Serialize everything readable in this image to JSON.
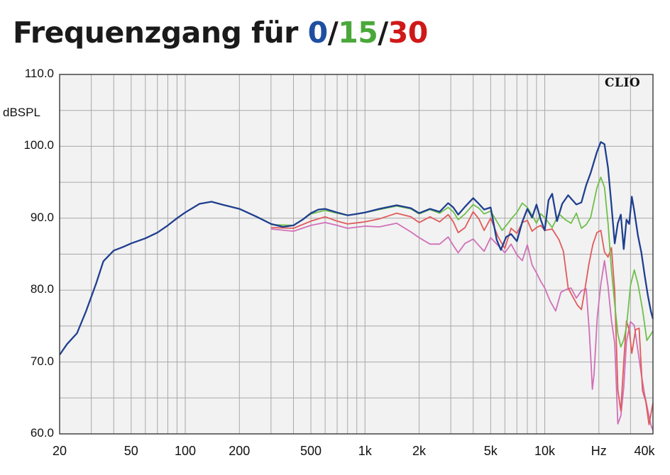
{
  "title": {
    "prefix": "Frequenzgang für",
    "part0": "0",
    "sep1": "/",
    "part15": "15",
    "sep2": "/",
    "part30": "30"
  },
  "colors": {
    "title_0": "#1f4fa0",
    "title_15": "#4aa83a",
    "title_30": "#d01818",
    "curve_0": "#1f3f8f",
    "curve_15": "#6fbf4a",
    "curve_30": "#e05a5a",
    "curve_45": "#d070b8",
    "grid": "#a8a8a8",
    "plot_bg": "#f2f2f2"
  },
  "watermark": "CLIO",
  "chart_data": {
    "type": "line",
    "x_scale": "log",
    "xlim": [
      20,
      40000
    ],
    "ylim": [
      60,
      110
    ],
    "yunit": "dBSPL",
    "y_ticks": [
      "110.0",
      "100.0",
      "90.0",
      "80.0",
      "70.0",
      "60.0"
    ],
    "x_ticks": [
      "20",
      "50",
      "100",
      "200",
      "500",
      "1k",
      "2k",
      "5k",
      "10k",
      "Hz",
      "40k"
    ],
    "grid": true,
    "series": [
      {
        "color": "#1f3f8f",
        "points": [
          [
            20,
            71
          ],
          [
            22,
            72.5
          ],
          [
            25,
            74
          ],
          [
            28,
            77
          ],
          [
            32,
            81
          ],
          [
            35,
            84
          ],
          [
            40,
            85.5
          ],
          [
            45,
            86
          ],
          [
            50,
            86.5
          ],
          [
            60,
            87.2
          ],
          [
            70,
            88
          ],
          [
            80,
            89
          ],
          [
            90,
            90
          ],
          [
            100,
            90.8
          ],
          [
            120,
            92
          ],
          [
            140,
            92.3
          ],
          [
            160,
            91.9
          ],
          [
            200,
            91.3
          ],
          [
            250,
            90.2
          ],
          [
            300,
            89.2
          ],
          [
            350,
            88.8
          ],
          [
            400,
            89
          ],
          [
            450,
            89.8
          ],
          [
            500,
            90.7
          ],
          [
            550,
            91.2
          ],
          [
            600,
            91.3
          ],
          [
            700,
            90.8
          ],
          [
            800,
            90.4
          ],
          [
            900,
            90.6
          ],
          [
            1000,
            90.8
          ],
          [
            1200,
            91.3
          ],
          [
            1500,
            91.8
          ],
          [
            1800,
            91.4
          ],
          [
            2000,
            90.7
          ],
          [
            2300,
            91.3
          ],
          [
            2600,
            90.9
          ],
          [
            2900,
            92.1
          ],
          [
            3100,
            91.5
          ],
          [
            3300,
            90.5
          ],
          [
            3600,
            91.6
          ],
          [
            4000,
            92.8
          ],
          [
            4300,
            92
          ],
          [
            4600,
            91.2
          ],
          [
            5000,
            91.5
          ],
          [
            5400,
            87
          ],
          [
            5700,
            85.6
          ],
          [
            6100,
            87.4
          ],
          [
            6500,
            87.8
          ],
          [
            7000,
            86.8
          ],
          [
            7500,
            89.5
          ],
          [
            8000,
            91.3
          ],
          [
            8500,
            90.1
          ],
          [
            9000,
            91.9
          ],
          [
            9500,
            89.8
          ],
          [
            10000,
            88.3
          ],
          [
            10500,
            92.5
          ],
          [
            11000,
            93.4
          ],
          [
            11700,
            89.6
          ],
          [
            12500,
            92
          ],
          [
            13500,
            93.2
          ],
          [
            15000,
            91.9
          ],
          [
            16000,
            92.2
          ],
          [
            17000,
            94.6
          ],
          [
            18000,
            96.3
          ],
          [
            19500,
            99.2
          ],
          [
            20500,
            100.6
          ],
          [
            21500,
            100.3
          ],
          [
            22500,
            97
          ],
          [
            23500,
            91.8
          ],
          [
            24500,
            86.5
          ],
          [
            25500,
            89.3
          ],
          [
            26500,
            90.5
          ],
          [
            27500,
            85.7
          ],
          [
            28500,
            89.8
          ],
          [
            29500,
            89.2
          ],
          [
            30500,
            93
          ],
          [
            31500,
            91
          ],
          [
            33000,
            87.6
          ],
          [
            34500,
            85.2
          ],
          [
            36000,
            82
          ],
          [
            37500,
            79.2
          ],
          [
            39000,
            77
          ],
          [
            40000,
            76
          ]
        ]
      },
      {
        "color": "#6fbf4a",
        "points": [
          [
            300,
            89.1
          ],
          [
            400,
            89
          ],
          [
            500,
            90.6
          ],
          [
            600,
            91.1
          ],
          [
            700,
            90.7
          ],
          [
            800,
            90.4
          ],
          [
            1000,
            90.8
          ],
          [
            1200,
            91.2
          ],
          [
            1500,
            91.7
          ],
          [
            1800,
            91.3
          ],
          [
            2000,
            90.6
          ],
          [
            2300,
            91.2
          ],
          [
            2600,
            90.7
          ],
          [
            2900,
            91.5
          ],
          [
            3100,
            90.9
          ],
          [
            3300,
            89.8
          ],
          [
            3600,
            90.6
          ],
          [
            4000,
            91.9
          ],
          [
            4300,
            91.4
          ],
          [
            4600,
            90.6
          ],
          [
            5000,
            91
          ],
          [
            5400,
            89.6
          ],
          [
            5800,
            88.3
          ],
          [
            6200,
            89.2
          ],
          [
            6600,
            90.1
          ],
          [
            7000,
            90.8
          ],
          [
            7500,
            92.1
          ],
          [
            8000,
            91.5
          ],
          [
            8500,
            90.4
          ],
          [
            9000,
            89.3
          ],
          [
            9500,
            90.6
          ],
          [
            10000,
            90.1
          ],
          [
            11000,
            88.7
          ],
          [
            12000,
            90.6
          ],
          [
            13000,
            89.8
          ],
          [
            14000,
            89.3
          ],
          [
            15000,
            90.7
          ],
          [
            16000,
            88.6
          ],
          [
            17000,
            89.1
          ],
          [
            18000,
            90.1
          ],
          [
            19500,
            94.2
          ],
          [
            20500,
            95.7
          ],
          [
            21500,
            94.3
          ],
          [
            22500,
            89.3
          ],
          [
            23500,
            82.8
          ],
          [
            24500,
            78.1
          ],
          [
            25500,
            73.9
          ],
          [
            26500,
            72.1
          ],
          [
            27500,
            73.1
          ],
          [
            28500,
            74.9
          ],
          [
            30000,
            80.7
          ],
          [
            31500,
            82.8
          ],
          [
            33000,
            80.9
          ],
          [
            35000,
            77.3
          ],
          [
            37000,
            73
          ],
          [
            40000,
            74.3
          ]
        ]
      },
      {
        "color": "#e05a5a",
        "points": [
          [
            300,
            88.7
          ],
          [
            400,
            88.6
          ],
          [
            500,
            89.6
          ],
          [
            600,
            90.2
          ],
          [
            700,
            89.6
          ],
          [
            800,
            89.2
          ],
          [
            1000,
            89.5
          ],
          [
            1200,
            89.9
          ],
          [
            1500,
            90.7
          ],
          [
            1800,
            90.2
          ],
          [
            2000,
            89.4
          ],
          [
            2300,
            90.2
          ],
          [
            2600,
            89.5
          ],
          [
            2900,
            90.5
          ],
          [
            3100,
            89.5
          ],
          [
            3300,
            88
          ],
          [
            3600,
            88.7
          ],
          [
            4000,
            90.9
          ],
          [
            4300,
            89.9
          ],
          [
            4600,
            88.3
          ],
          [
            5000,
            90
          ],
          [
            5500,
            87.4
          ],
          [
            6000,
            85.8
          ],
          [
            6500,
            88.6
          ],
          [
            7000,
            87.9
          ],
          [
            7500,
            89.4
          ],
          [
            8000,
            89.7
          ],
          [
            8500,
            88.2
          ],
          [
            9000,
            88.7
          ],
          [
            9500,
            89
          ],
          [
            10000,
            88.3
          ],
          [
            11000,
            88.5
          ],
          [
            12000,
            87
          ],
          [
            12700,
            85.4
          ],
          [
            13500,
            80.3
          ],
          [
            14300,
            79.1
          ],
          [
            15200,
            77.9
          ],
          [
            16000,
            77.3
          ],
          [
            16800,
            80.4
          ],
          [
            17600,
            83.6
          ],
          [
            18500,
            86.3
          ],
          [
            19500,
            88
          ],
          [
            20500,
            88.3
          ],
          [
            21500,
            85.3
          ],
          [
            22500,
            84.6
          ],
          [
            23500,
            85.9
          ],
          [
            24500,
            79.9
          ],
          [
            25500,
            66.1
          ],
          [
            26500,
            63.2
          ],
          [
            27500,
            69.9
          ],
          [
            28500,
            75.7
          ],
          [
            29500,
            74.5
          ],
          [
            30500,
            71.2
          ],
          [
            32000,
            74.5
          ],
          [
            33500,
            74.7
          ],
          [
            35000,
            66
          ],
          [
            36500,
            64.5
          ],
          [
            38000,
            61.3
          ],
          [
            39000,
            62.8
          ],
          [
            40000,
            64.3
          ]
        ]
      },
      {
        "color": "#d070b8",
        "points": [
          [
            300,
            88.5
          ],
          [
            400,
            88.2
          ],
          [
            500,
            89
          ],
          [
            600,
            89.4
          ],
          [
            700,
            89
          ],
          [
            800,
            88.6
          ],
          [
            1000,
            88.9
          ],
          [
            1200,
            88.8
          ],
          [
            1500,
            89.3
          ],
          [
            1800,
            88.1
          ],
          [
            2000,
            87.3
          ],
          [
            2300,
            86.4
          ],
          [
            2600,
            86.4
          ],
          [
            2900,
            87.4
          ],
          [
            3100,
            86.2
          ],
          [
            3300,
            85.2
          ],
          [
            3600,
            86.5
          ],
          [
            4000,
            87.1
          ],
          [
            4300,
            86.2
          ],
          [
            4600,
            85.4
          ],
          [
            5000,
            87.3
          ],
          [
            5500,
            86.2
          ],
          [
            6000,
            85.2
          ],
          [
            6500,
            86.4
          ],
          [
            7000,
            84.9
          ],
          [
            7500,
            84.1
          ],
          [
            8000,
            86.3
          ],
          [
            8500,
            83.5
          ],
          [
            9000,
            82.4
          ],
          [
            9500,
            81.2
          ],
          [
            10000,
            80.3
          ],
          [
            10700,
            78.5
          ],
          [
            11500,
            77.1
          ],
          [
            12300,
            79.7
          ],
          [
            13200,
            80.1
          ],
          [
            14000,
            80.3
          ],
          [
            15000,
            78.9
          ],
          [
            16000,
            79.9
          ],
          [
            17000,
            80.2
          ],
          [
            17700,
            74.2
          ],
          [
            18100,
            69.8
          ],
          [
            18400,
            66.2
          ],
          [
            18800,
            68.3
          ],
          [
            19600,
            76.2
          ],
          [
            20500,
            80.8
          ],
          [
            21500,
            84.1
          ],
          [
            22500,
            80.5
          ],
          [
            23500,
            75.8
          ],
          [
            24500,
            72.6
          ],
          [
            25500,
            61.4
          ],
          [
            26500,
            62.5
          ],
          [
            27500,
            66.4
          ],
          [
            28500,
            72.9
          ],
          [
            30000,
            75.6
          ],
          [
            31500,
            75.1
          ],
          [
            33000,
            71.6
          ],
          [
            34500,
            68.2
          ],
          [
            36000,
            65.4
          ],
          [
            37500,
            63.2
          ],
          [
            39000,
            61.2
          ],
          [
            40000,
            60.5
          ]
        ]
      }
    ]
  }
}
